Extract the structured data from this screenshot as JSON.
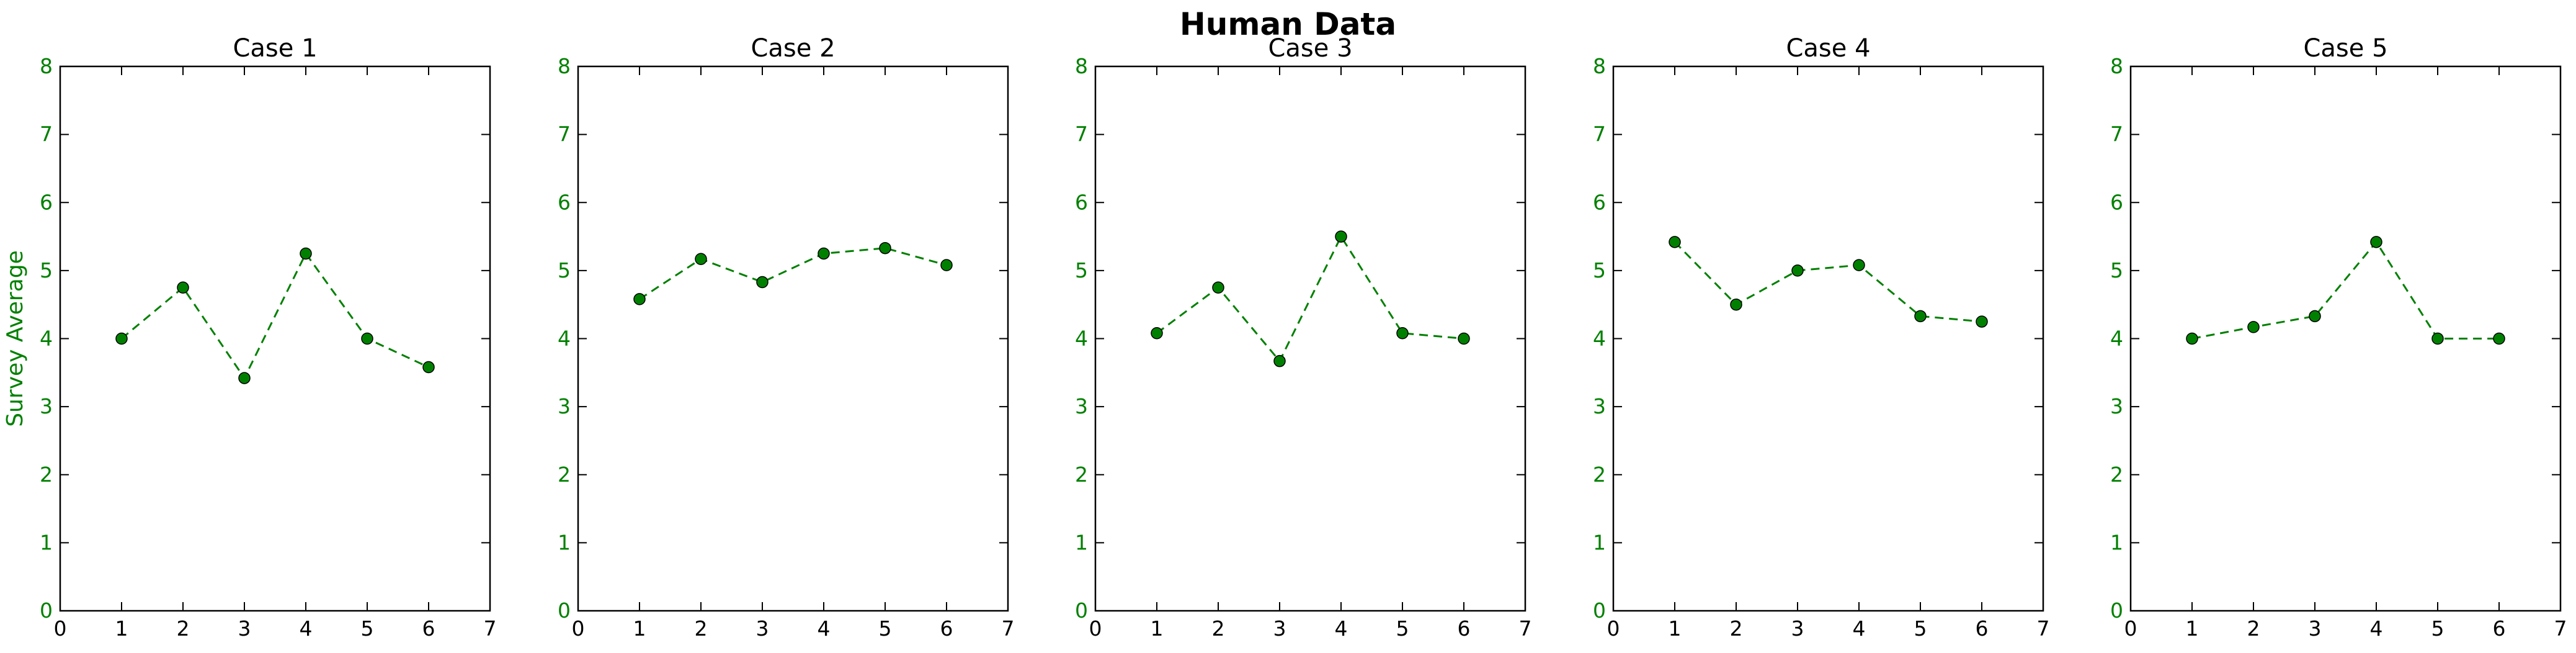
{
  "figure": {
    "suptitle": "Human Data",
    "series_color": "#008000",
    "axis_color": "#000000",
    "ytick_color": "#008000"
  },
  "chart_data": [
    {
      "type": "line",
      "title": "Case 1",
      "xlabel": "",
      "ylabel": "Survey Average",
      "xlim": [
        0,
        7
      ],
      "ylim": [
        0,
        8
      ],
      "xticks": [
        "0",
        "1",
        "2",
        "3",
        "4",
        "5",
        "6",
        "7"
      ],
      "yticks": [
        "0",
        "1",
        "2",
        "3",
        "4",
        "5",
        "6",
        "7",
        "8"
      ],
      "grid": false,
      "line_style": "dashed",
      "marker": "circle",
      "x": [
        1,
        2,
        3,
        4,
        5,
        6
      ],
      "y": [
        4.0,
        4.75,
        3.42,
        5.25,
        4.0,
        3.58
      ]
    },
    {
      "type": "line",
      "title": "Case 2",
      "xlabel": "",
      "ylabel": "",
      "xlim": [
        0,
        7
      ],
      "ylim": [
        0,
        8
      ],
      "xticks": [
        "0",
        "1",
        "2",
        "3",
        "4",
        "5",
        "6",
        "7"
      ],
      "yticks": [
        "0",
        "1",
        "2",
        "3",
        "4",
        "5",
        "6",
        "7",
        "8"
      ],
      "grid": false,
      "line_style": "dashed",
      "marker": "circle",
      "x": [
        1,
        2,
        3,
        4,
        5,
        6
      ],
      "y": [
        4.58,
        5.17,
        4.83,
        5.25,
        5.33,
        5.08
      ]
    },
    {
      "type": "line",
      "title": "Case 3",
      "xlabel": "",
      "ylabel": "",
      "xlim": [
        0,
        7
      ],
      "ylim": [
        0,
        8
      ],
      "xticks": [
        "0",
        "1",
        "2",
        "3",
        "4",
        "5",
        "6",
        "7"
      ],
      "yticks": [
        "0",
        "1",
        "2",
        "3",
        "4",
        "5",
        "6",
        "7",
        "8"
      ],
      "grid": false,
      "line_style": "dashed",
      "marker": "circle",
      "x": [
        1,
        2,
        3,
        4,
        5,
        6
      ],
      "y": [
        4.08,
        4.75,
        3.67,
        5.5,
        4.08,
        4.0
      ]
    },
    {
      "type": "line",
      "title": "Case 4",
      "xlabel": "",
      "ylabel": "",
      "xlim": [
        0,
        7
      ],
      "ylim": [
        0,
        8
      ],
      "xticks": [
        "0",
        "1",
        "2",
        "3",
        "4",
        "5",
        "6",
        "7"
      ],
      "yticks": [
        "0",
        "1",
        "2",
        "3",
        "4",
        "5",
        "6",
        "7",
        "8"
      ],
      "grid": false,
      "line_style": "dashed",
      "marker": "circle",
      "x": [
        1,
        2,
        3,
        4,
        5,
        6
      ],
      "y": [
        5.42,
        4.5,
        5.0,
        5.08,
        4.33,
        4.25
      ]
    },
    {
      "type": "line",
      "title": "Case 5",
      "xlabel": "",
      "ylabel": "",
      "xlim": [
        0,
        7
      ],
      "ylim": [
        0,
        8
      ],
      "xticks": [
        "0",
        "1",
        "2",
        "3",
        "4",
        "5",
        "6",
        "7"
      ],
      "yticks": [
        "0",
        "1",
        "2",
        "3",
        "4",
        "5",
        "6",
        "7",
        "8"
      ],
      "grid": false,
      "line_style": "dashed",
      "marker": "circle",
      "x": [
        1,
        2,
        3,
        4,
        5,
        6
      ],
      "y": [
        4.0,
        4.17,
        4.33,
        5.42,
        4.0,
        4.0
      ]
    }
  ]
}
